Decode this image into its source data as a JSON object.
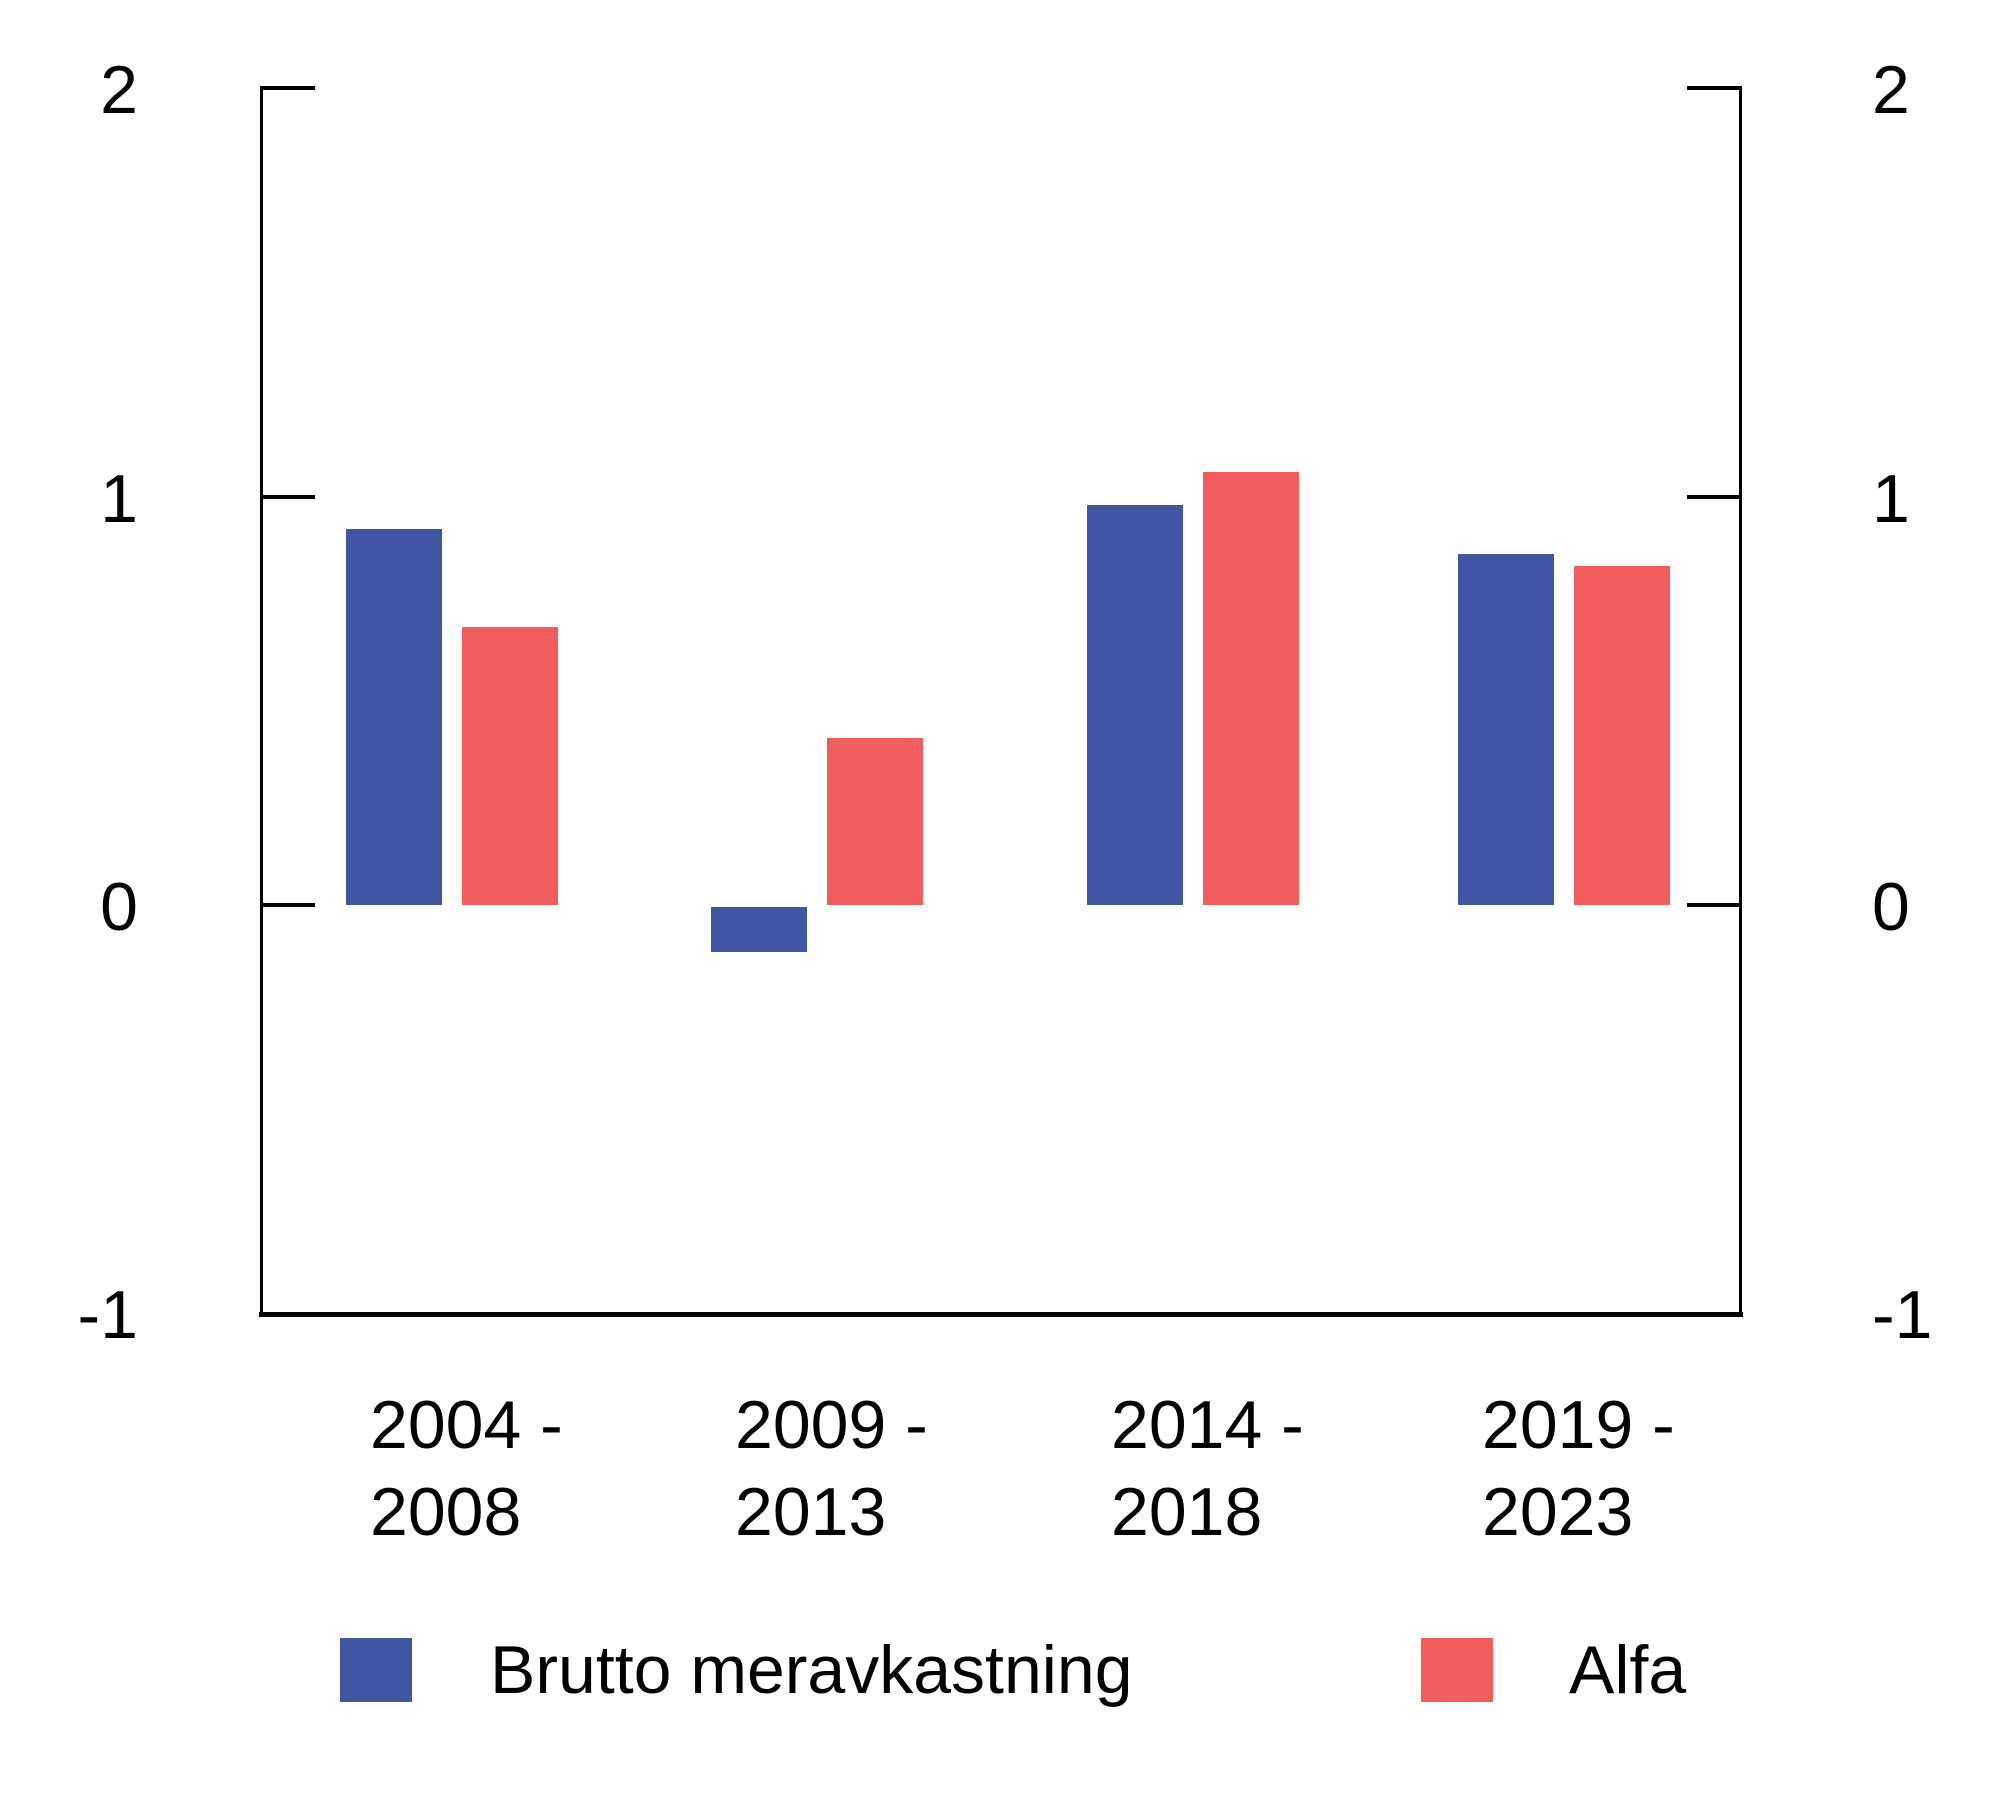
{
  "figure": {
    "background_color": "#ffffff",
    "axis_color": "#000000",
    "text_color": "#000000"
  },
  "chart_data": {
    "type": "bar",
    "categories": [
      "2004 - 2008",
      "2009 - 2013",
      "2014 - 2018",
      "2019 - 2023"
    ],
    "series": [
      {
        "name": "Brutto meravkastning",
        "color": "#4156a4",
        "values": [
          0.92,
          -0.11,
          0.98,
          0.86
        ]
      },
      {
        "name": "Alfa",
        "color": "#f15c5f",
        "values": [
          0.68,
          0.41,
          1.06,
          0.83
        ]
      }
    ],
    "ylim": [
      -1,
      2
    ],
    "yticks": [
      2,
      1,
      0,
      -1
    ],
    "ytick_labels": [
      "2",
      "1",
      "0",
      "-1"
    ],
    "y_axis_sides": [
      "left",
      "right"
    ],
    "grid": false,
    "legend_position": "bottom"
  }
}
